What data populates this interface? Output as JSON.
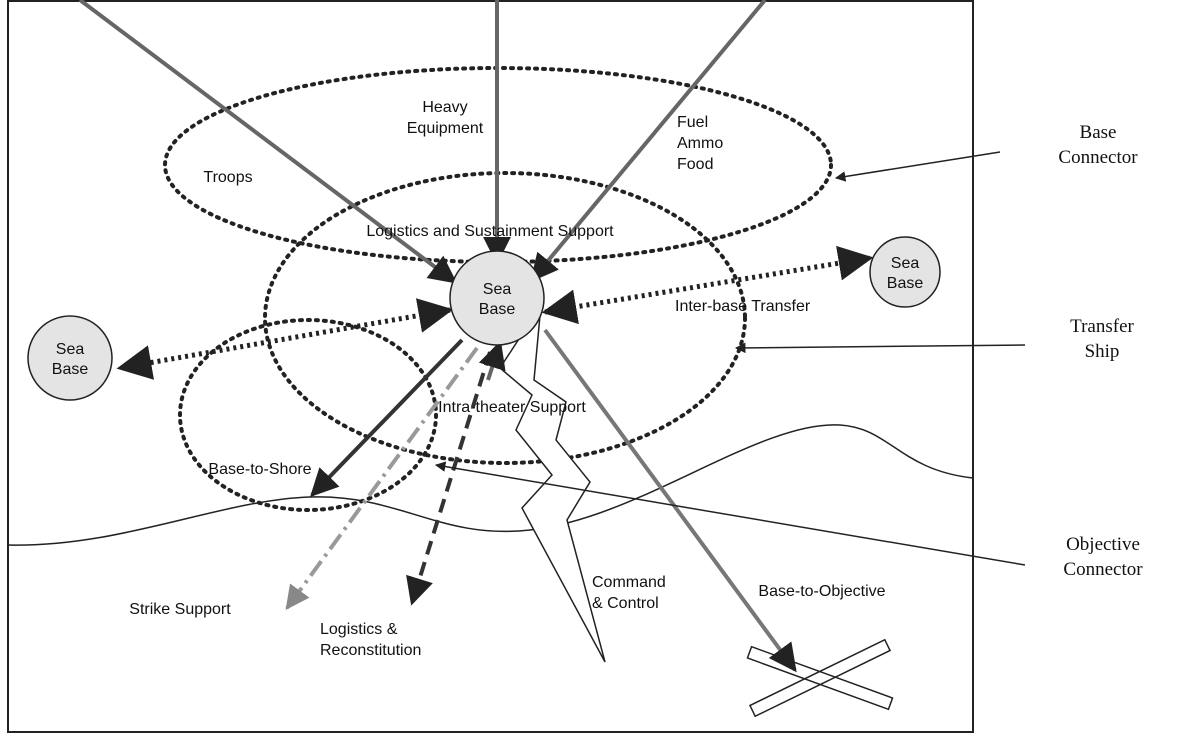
{
  "diagram": {
    "labels": [
      {
        "lines": [
          "Troops"
        ]
      },
      {
        "lines": [
          "Heavy",
          "Equipment"
        ]
      },
      {
        "lines": [
          "Fuel",
          "Ammo",
          "Food"
        ]
      },
      {
        "lines": [
          "Logistics and Sustainment Support"
        ]
      },
      {
        "lines": [
          "Inter-base Transfer"
        ]
      },
      {
        "lines": [
          "Intra-theater Support"
        ]
      },
      {
        "lines": [
          "Base-to-Shore"
        ]
      },
      {
        "lines": [
          "Strike Support"
        ]
      },
      {
        "lines": [
          "Logistics &",
          "Reconstitution"
        ]
      },
      {
        "lines": [
          "Command",
          "& Control"
        ]
      },
      {
        "lines": [
          "Base-to-Objective"
        ]
      }
    ],
    "nodes": [
      {
        "lines": [
          "Sea",
          "Base"
        ]
      },
      {
        "lines": [
          "Sea",
          "Base"
        ]
      },
      {
        "lines": [
          "Sea",
          "Base"
        ]
      }
    ],
    "callouts": [
      {
        "lines": [
          "Base",
          "Connector"
        ]
      },
      {
        "lines": [
          "Transfer",
          "Ship"
        ]
      },
      {
        "lines": [
          "Objective",
          "Connector"
        ]
      }
    ]
  }
}
